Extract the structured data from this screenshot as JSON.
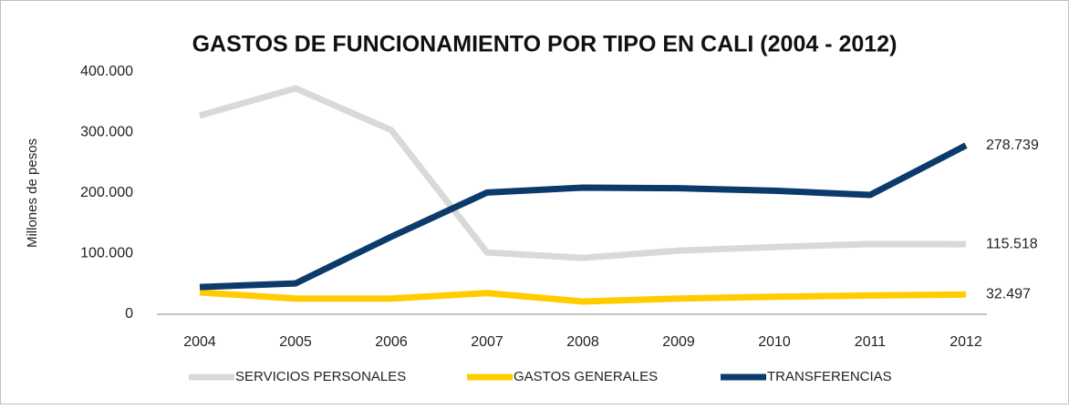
{
  "chart_data": {
    "type": "line",
    "title": "GASTOS DE FUNCIONAMIENTO POR TIPO EN CALI (2004 - 2012)",
    "y_label": "Millones de pesos",
    "categories": [
      "2004",
      "2005",
      "2006",
      "2007",
      "2008",
      "2009",
      "2010",
      "2011",
      "2012"
    ],
    "series": [
      {
        "name": "SERVICIOS PERSONALES",
        "color": "#d9d9d9",
        "values": [
          328000,
          373000,
          304000,
          102000,
          93000,
          105000,
          111000,
          116000,
          115518
        ],
        "value_labels": [
          null,
          null,
          null,
          null,
          null,
          null,
          null,
          null,
          "115.518"
        ]
      },
      {
        "name": "GASTOS GENERALES",
        "color": "#ffcc00",
        "values": [
          36000,
          26000,
          26000,
          35000,
          21000,
          26000,
          29000,
          31000,
          32497
        ],
        "value_labels": [
          null,
          null,
          null,
          null,
          null,
          null,
          null,
          null,
          "32.497"
        ]
      },
      {
        "name": "TRANSFERENCIAS",
        "color": "#0b3a6b",
        "values": [
          45000,
          51000,
          128000,
          201000,
          209000,
          208000,
          204000,
          197000,
          278739
        ],
        "value_labels": [
          null,
          null,
          null,
          null,
          null,
          null,
          null,
          null,
          "278.739"
        ]
      }
    ],
    "ylim": [
      0,
      400000
    ],
    "yticks": [
      0,
      {
        "value": 100000,
        "label": "100.000"
      },
      {
        "value": 200000,
        "label": "200.000"
      },
      {
        "value": 300000,
        "label": "300.000"
      },
      {
        "value": 400000,
        "label": "400.000"
      }
    ],
    "grid": false,
    "legend": "bottom"
  }
}
